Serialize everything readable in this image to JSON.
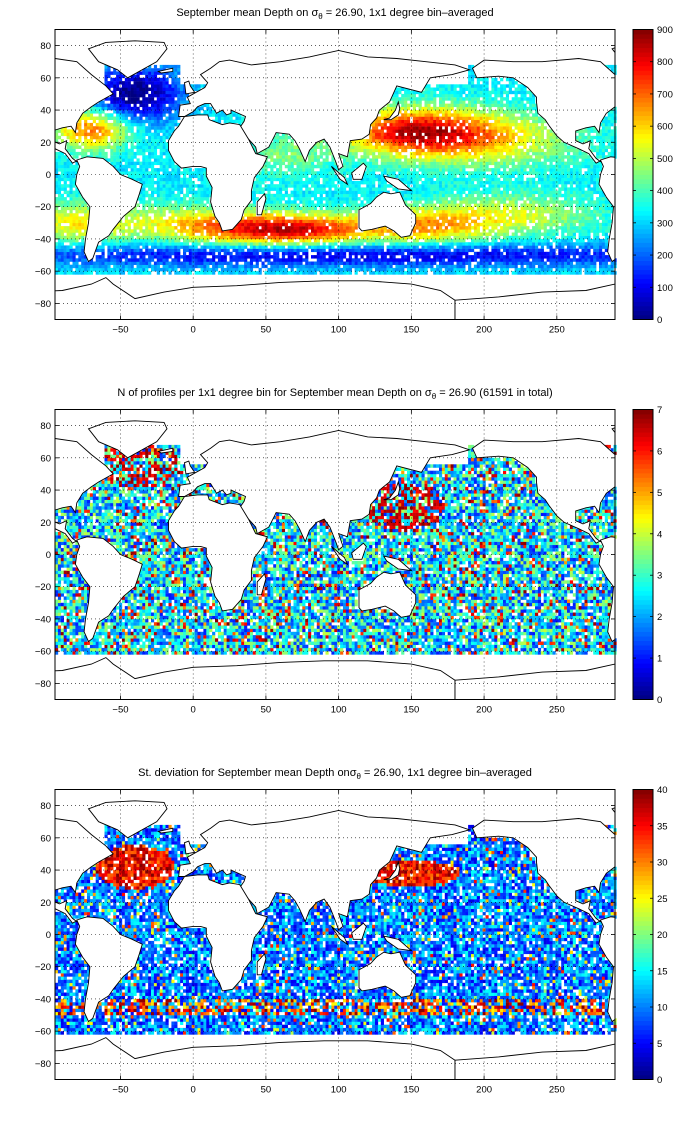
{
  "chart_data": [
    {
      "type": "heatmap",
      "title_pre": "September mean Depth on ",
      "title_sym": "σ",
      "title_sub": "θ",
      "title_post": " = 26.90, 1x1 degree bin–averaged",
      "x_ticks": [
        -50,
        0,
        50,
        100,
        150,
        200,
        250
      ],
      "y_ticks": [
        80,
        60,
        40,
        20,
        0,
        -20,
        -40,
        -60,
        -80
      ],
      "xlim": [
        -95,
        290
      ],
      "ylim": [
        -90,
        90
      ],
      "colorbar": {
        "min": 0,
        "max": 900,
        "ticks": [
          0,
          100,
          200,
          300,
          400,
          500,
          600,
          700,
          800,
          900
        ]
      },
      "grid": "dotted",
      "colormap": "jet"
    },
    {
      "type": "heatmap",
      "title_pre": "N of profiles per 1x1 degree bin for September mean Depth on ",
      "title_sym": "σ",
      "title_sub": "θ",
      "title_post": " = 26.90 (61591 in total)",
      "x_ticks": [
        -50,
        0,
        50,
        100,
        150,
        200,
        250
      ],
      "y_ticks": [
        80,
        60,
        40,
        20,
        0,
        -20,
        -40,
        -60,
        -80
      ],
      "xlim": [
        -95,
        290
      ],
      "ylim": [
        -90,
        90
      ],
      "colorbar": {
        "min": 0,
        "max": 7,
        "ticks": [
          0,
          1,
          2,
          3,
          4,
          5,
          6,
          7
        ]
      },
      "grid": "dotted",
      "colormap": "jet"
    },
    {
      "type": "heatmap",
      "title_pre": "St. deviation for September mean Depth on",
      "title_sym": "σ",
      "title_sub": "θ",
      "title_post": " = 26.90, 1x1 degree bin–averaged",
      "x_ticks": [
        -50,
        0,
        50,
        100,
        150,
        200,
        250
      ],
      "y_ticks": [
        80,
        60,
        40,
        20,
        0,
        -20,
        -40,
        -60,
        -80
      ],
      "xlim": [
        -95,
        290
      ],
      "ylim": [
        -90,
        90
      ],
      "colorbar": {
        "min": 0,
        "max": 40,
        "ticks": [
          0,
          5,
          10,
          15,
          20,
          25,
          30,
          35,
          40
        ]
      },
      "grid": "dotted",
      "colormap": "jet"
    }
  ]
}
